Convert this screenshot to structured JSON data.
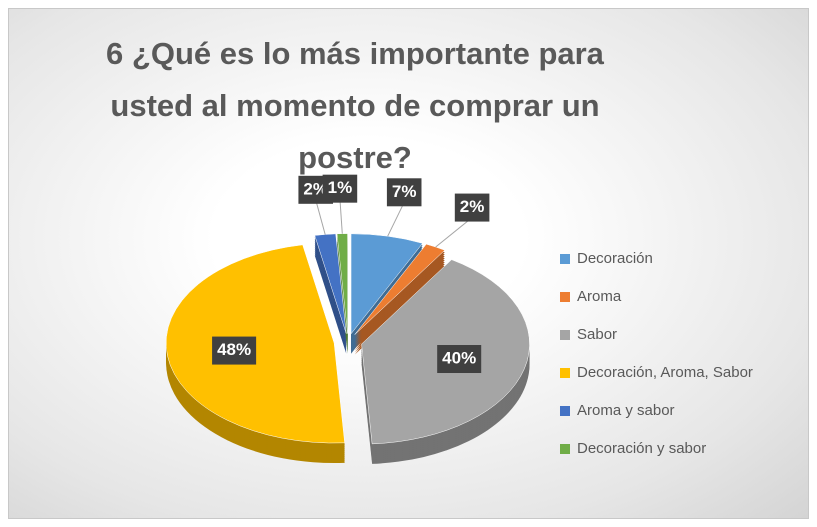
{
  "chart_data": {
    "type": "pie",
    "title": "6 ¿Qué es lo más importante para usted al momento de comprar un postre?",
    "categories": [
      "Decoración",
      "Aroma",
      "Sabor",
      "Decoración, Aroma, Sabor",
      "Aroma y sabor",
      "Decoración y sabor"
    ],
    "values": [
      7,
      2,
      40,
      48,
      2,
      1
    ],
    "value_labels": [
      "7%",
      "2%",
      "40%",
      "48%",
      "2%",
      "1%"
    ],
    "colors": [
      "#5b9bd5",
      "#ed7d31",
      "#a5a5a5",
      "#ffc000",
      "#4472c4",
      "#70ad47"
    ],
    "legend": "right"
  }
}
